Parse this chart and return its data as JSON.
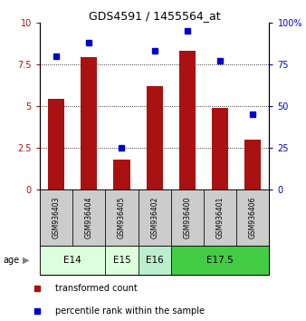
{
  "title": "GDS4591 / 1455564_at",
  "samples": [
    "GSM936403",
    "GSM936404",
    "GSM936405",
    "GSM936402",
    "GSM936400",
    "GSM936401",
    "GSM936406"
  ],
  "transformed_count": [
    5.4,
    7.9,
    1.8,
    6.2,
    8.3,
    4.9,
    3.0
  ],
  "percentile_rank": [
    80,
    88,
    25,
    83,
    95,
    77,
    45
  ],
  "bar_color": "#AA1111",
  "dot_color": "#0000CC",
  "ylim_left": [
    0,
    10
  ],
  "ylim_right": [
    0,
    100
  ],
  "yticks_left": [
    0,
    2.5,
    5,
    7.5,
    10
  ],
  "yticks_right": [
    0,
    25,
    50,
    75,
    100
  ],
  "ytick_labels_left": [
    "0",
    "2.5",
    "5",
    "7.5",
    "10"
  ],
  "ytick_labels_right": [
    "0",
    "25",
    "50",
    "75",
    "100%"
  ],
  "age_groups": [
    {
      "label": "E14",
      "start": 0,
      "end": 2,
      "color": "#ddffdd"
    },
    {
      "label": "E15",
      "start": 2,
      "end": 3,
      "color": "#ddffdd"
    },
    {
      "label": "E16",
      "start": 3,
      "end": 4,
      "color": "#bbeecc"
    },
    {
      "label": "E17.5",
      "start": 4,
      "end": 7,
      "color": "#44cc44"
    }
  ],
  "age_label": "age",
  "legend_bar_label": "transformed count",
  "legend_dot_label": "percentile rank within the sample",
  "background_color": "#ffffff",
  "sample_box_color": "#cccccc"
}
